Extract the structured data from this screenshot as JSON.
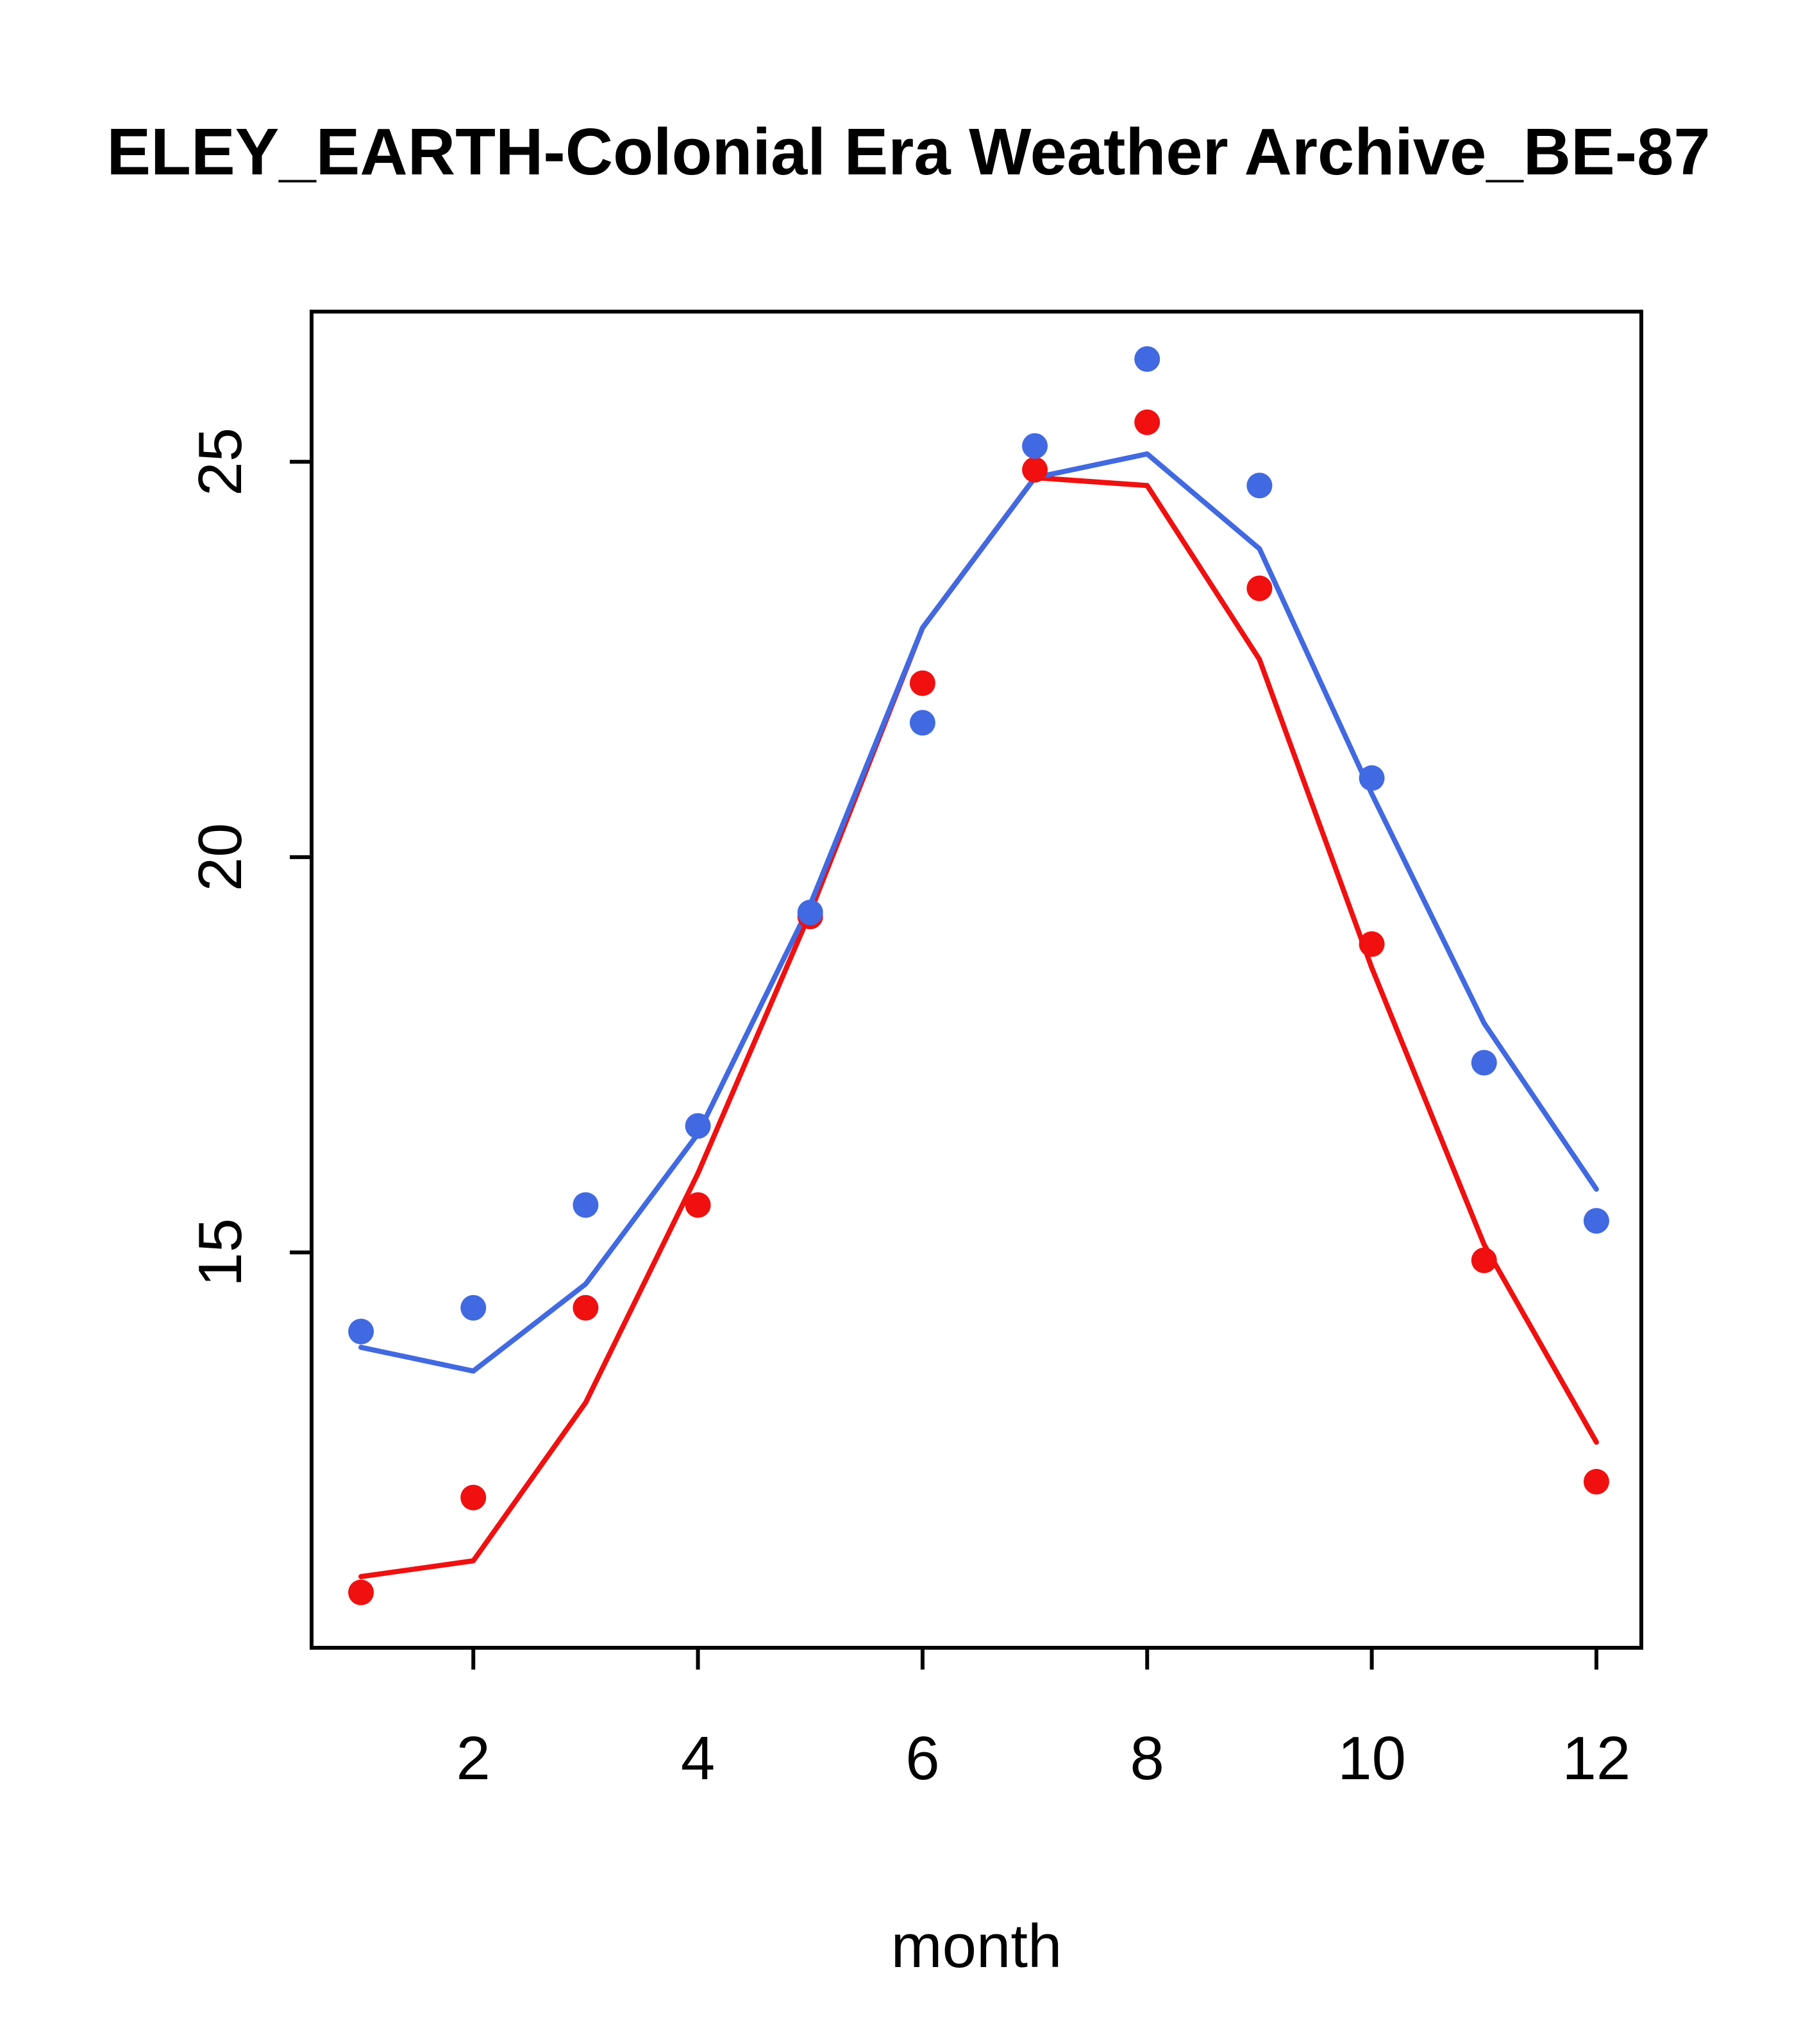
{
  "title": "ELEY_EARTH-Colonial Era Weather Archive_BE-87",
  "chart_data": {
    "type": "line",
    "title": "ELEY_EARTH-Colonial Era Weather Archive_BE-87",
    "xlabel": "month",
    "ylabel": "",
    "x": [
      1,
      2,
      3,
      4,
      5,
      6,
      7,
      8,
      9,
      10,
      11,
      12
    ],
    "x_ticks": [
      2,
      4,
      6,
      8,
      10,
      12
    ],
    "y_ticks": [
      15,
      20,
      25
    ],
    "xlim": [
      0.56,
      12.4
    ],
    "ylim": [
      10.0,
      26.9
    ],
    "grid": false,
    "legend": "none",
    "series": [
      {
        "name": "red-series",
        "color": "#f01010",
        "marker": "filled-circle",
        "points": [
          10.7,
          11.9,
          14.3,
          15.6,
          19.25,
          22.2,
          24.9,
          25.5,
          23.4,
          18.9,
          14.9,
          12.1
        ],
        "line": [
          10.9,
          11.1,
          13.1,
          16.0,
          19.3,
          22.9,
          24.8,
          24.7,
          22.5,
          18.6,
          15.1,
          12.6
        ]
      },
      {
        "name": "blue-series",
        "color": "#4169e1",
        "marker": "filled-circle",
        "points": [
          14.0,
          14.3,
          15.6,
          16.6,
          19.3,
          21.7,
          25.2,
          26.3,
          24.7,
          21.0,
          17.4,
          15.4
        ],
        "line": [
          13.8,
          13.5,
          14.6,
          16.5,
          19.4,
          22.9,
          24.8,
          25.1,
          23.9,
          20.8,
          17.9,
          15.8
        ]
      }
    ]
  },
  "layout_note": "two seasonal temperature curves, points plus fitted lines, R-style plot"
}
